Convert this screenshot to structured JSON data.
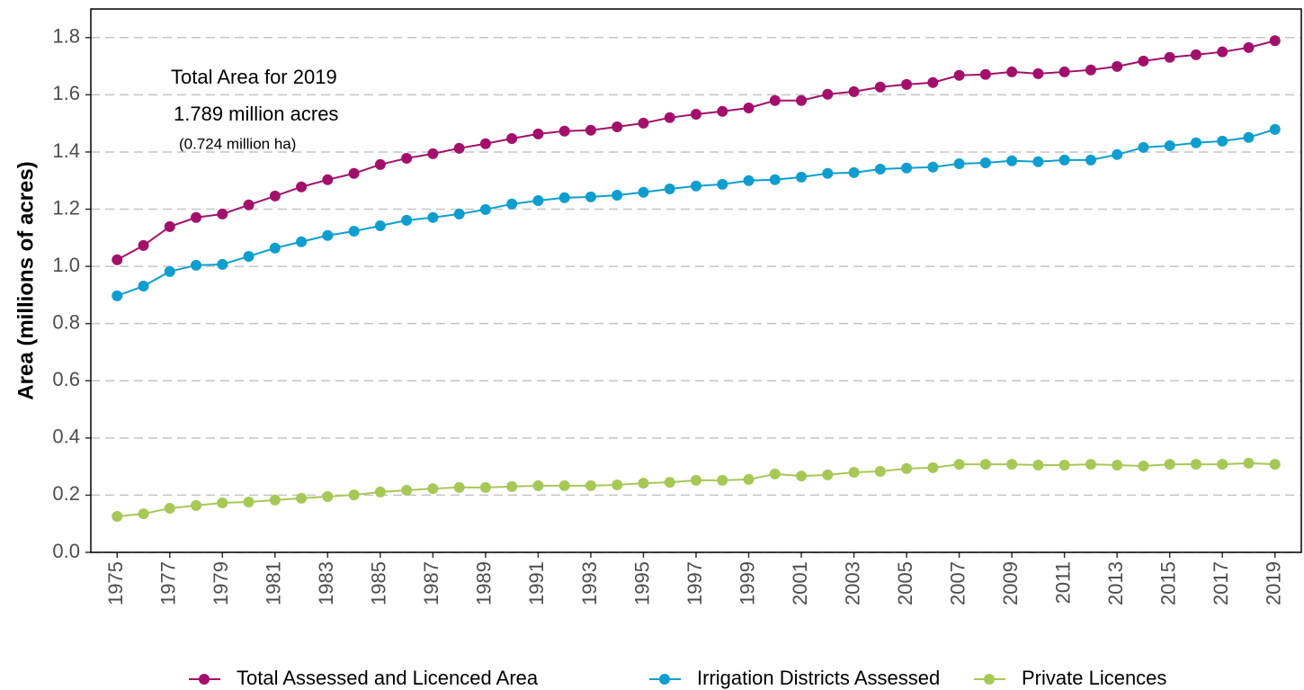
{
  "chart_data": {
    "type": "line",
    "y_label": "Area (millions of acres)",
    "annotations": [
      "Total Area for 2019",
      "1.789 million acres",
      "(0.724 million ha)"
    ],
    "x": [
      1975,
      1976,
      1977,
      1978,
      1979,
      1980,
      1981,
      1982,
      1983,
      1984,
      1985,
      1986,
      1987,
      1988,
      1989,
      1990,
      1991,
      1992,
      1993,
      1994,
      1995,
      1996,
      1997,
      1998,
      1999,
      2000,
      2001,
      2002,
      2003,
      2004,
      2005,
      2006,
      2007,
      2008,
      2009,
      2010,
      2011,
      2012,
      2013,
      2014,
      2015,
      2016,
      2017,
      2018,
      2019
    ],
    "series": [
      {
        "name": "Total Assessed and Licenced Area",
        "color": "#a3106c",
        "values": [
          1.023,
          1.073,
          1.139,
          1.171,
          1.183,
          1.215,
          1.246,
          1.278,
          1.303,
          1.325,
          1.356,
          1.378,
          1.394,
          1.413,
          1.429,
          1.447,
          1.463,
          1.473,
          1.476,
          1.488,
          1.501,
          1.52,
          1.532,
          1.542,
          1.554,
          1.58,
          1.58,
          1.602,
          1.611,
          1.627,
          1.636,
          1.643,
          1.668,
          1.671,
          1.68,
          1.674,
          1.68,
          1.687,
          1.699,
          1.718,
          1.731,
          1.74,
          1.75,
          1.765,
          1.789
        ]
      },
      {
        "name": "Irrigation Districts Assessed",
        "color": "#0d9ecf",
        "values": [
          0.897,
          0.931,
          0.982,
          1.004,
          1.007,
          1.035,
          1.064,
          1.086,
          1.108,
          1.123,
          1.142,
          1.161,
          1.171,
          1.183,
          1.199,
          1.218,
          1.23,
          1.24,
          1.243,
          1.249,
          1.259,
          1.271,
          1.281,
          1.287,
          1.3,
          1.303,
          1.312,
          1.325,
          1.328,
          1.34,
          1.344,
          1.347,
          1.359,
          1.362,
          1.369,
          1.366,
          1.372,
          1.372,
          1.391,
          1.416,
          1.422,
          1.432,
          1.438,
          1.451,
          1.479
        ]
      },
      {
        "name": "Private Licences",
        "color": "#a6c856",
        "values": [
          0.126,
          0.135,
          0.154,
          0.164,
          0.173,
          0.176,
          0.183,
          0.189,
          0.195,
          0.201,
          0.211,
          0.217,
          0.223,
          0.227,
          0.227,
          0.23,
          0.233,
          0.233,
          0.233,
          0.236,
          0.242,
          0.245,
          0.252,
          0.252,
          0.255,
          0.274,
          0.267,
          0.271,
          0.28,
          0.283,
          0.293,
          0.296,
          0.308,
          0.308,
          0.308,
          0.305,
          0.305,
          0.308,
          0.305,
          0.302,
          0.308,
          0.308,
          0.308,
          0.312,
          0.308
        ]
      }
    ],
    "xlim": [
      1974,
      2020
    ],
    "xticks": [
      1975,
      1977,
      1979,
      1981,
      1983,
      1985,
      1987,
      1989,
      1991,
      1993,
      1995,
      1997,
      1999,
      2001,
      2003,
      2005,
      2007,
      2009,
      2011,
      2013,
      2015,
      2017,
      2019
    ],
    "ylim": [
      0,
      1.9
    ],
    "yticks": [
      {
        "value": 0,
        "label": "0.0"
      },
      0.2,
      0.4,
      0.6,
      0.8,
      {
        "value": 1,
        "label": "1.0"
      },
      1.2,
      1.4,
      1.6,
      1.8
    ],
    "grid": true,
    "legend": "bottom"
  }
}
